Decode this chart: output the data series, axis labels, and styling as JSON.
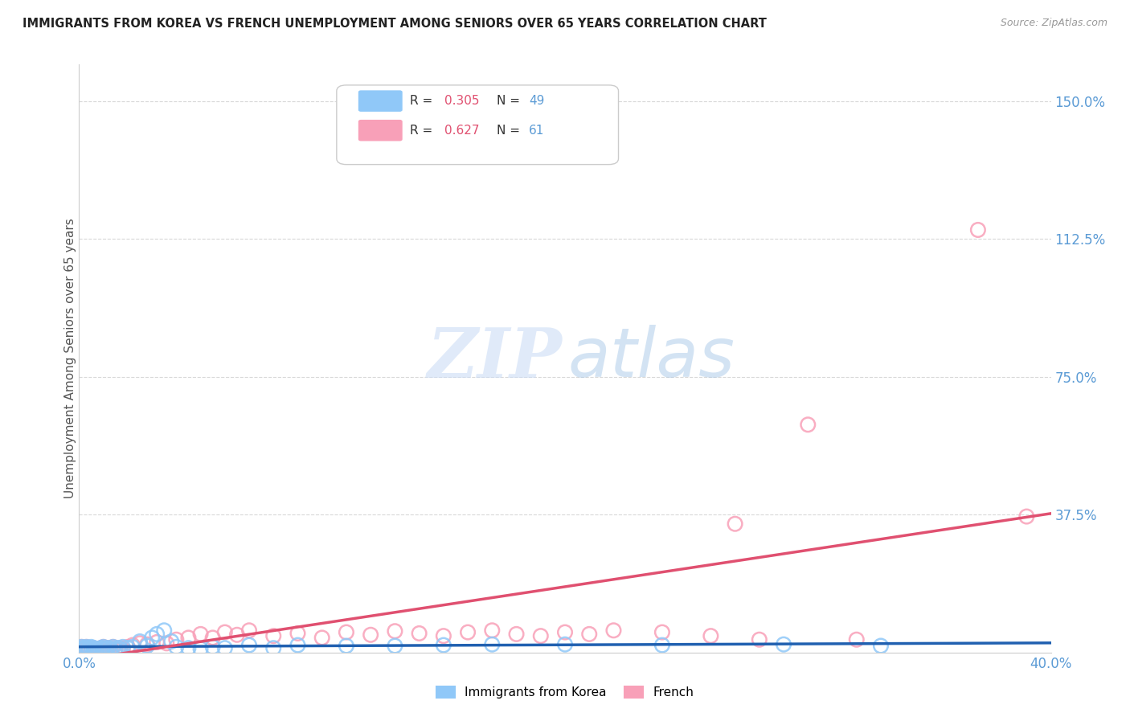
{
  "title": "IMMIGRANTS FROM KOREA VS FRENCH UNEMPLOYMENT AMONG SENIORS OVER 65 YEARS CORRELATION CHART",
  "source": "Source: ZipAtlas.com",
  "ylabel": "Unemployment Among Seniors over 65 years",
  "xlim": [
    0.0,
    0.4
  ],
  "ylim": [
    0.0,
    1.6
  ],
  "xtick_labels": [
    "0.0%",
    "40.0%"
  ],
  "xtick_values": [
    0.0,
    0.4
  ],
  "ytick_labels": [
    "37.5%",
    "75.0%",
    "112.5%",
    "150.0%"
  ],
  "ytick_values": [
    0.375,
    0.75,
    1.125,
    1.5
  ],
  "background_color": "#ffffff",
  "korea_color": "#90c8f8",
  "french_color": "#f8a0b8",
  "korea_line_color": "#2060b0",
  "french_line_color": "#e05070",
  "grid_color": "#d8d8d8",
  "tick_color": "#5b9bd5",
  "legend_r_color": "#e05070",
  "legend_n_color": "#5b9bd5",
  "korea_legend_color": "#90c8f8",
  "french_legend_color": "#f8a0b8",
  "korea_scatter_x": [
    0.001,
    0.001,
    0.002,
    0.002,
    0.003,
    0.003,
    0.004,
    0.004,
    0.005,
    0.005,
    0.006,
    0.006,
    0.007,
    0.008,
    0.009,
    0.01,
    0.01,
    0.011,
    0.012,
    0.013,
    0.014,
    0.015,
    0.016,
    0.017,
    0.018,
    0.02,
    0.022,
    0.025,
    0.028,
    0.03,
    0.032,
    0.035,
    0.038,
    0.04,
    0.045,
    0.05,
    0.055,
    0.06,
    0.07,
    0.08,
    0.09,
    0.11,
    0.13,
    0.15,
    0.17,
    0.2,
    0.24,
    0.29,
    0.33
  ],
  "korea_scatter_y": [
    0.01,
    0.015,
    0.01,
    0.012,
    0.01,
    0.015,
    0.01,
    0.012,
    0.01,
    0.015,
    0.01,
    0.012,
    0.01,
    0.01,
    0.012,
    0.01,
    0.015,
    0.01,
    0.012,
    0.01,
    0.015,
    0.01,
    0.012,
    0.01,
    0.015,
    0.012,
    0.015,
    0.03,
    0.018,
    0.04,
    0.05,
    0.06,
    0.03,
    0.015,
    0.012,
    0.01,
    0.015,
    0.012,
    0.02,
    0.012,
    0.02,
    0.018,
    0.018,
    0.02,
    0.022,
    0.022,
    0.02,
    0.022,
    0.018
  ],
  "french_scatter_x": [
    0.001,
    0.001,
    0.002,
    0.002,
    0.003,
    0.003,
    0.004,
    0.004,
    0.005,
    0.005,
    0.006,
    0.006,
    0.007,
    0.008,
    0.009,
    0.01,
    0.01,
    0.011,
    0.012,
    0.013,
    0.014,
    0.015,
    0.016,
    0.017,
    0.018,
    0.02,
    0.022,
    0.025,
    0.028,
    0.032,
    0.036,
    0.04,
    0.045,
    0.05,
    0.055,
    0.06,
    0.065,
    0.07,
    0.08,
    0.09,
    0.1,
    0.11,
    0.12,
    0.13,
    0.14,
    0.15,
    0.16,
    0.17,
    0.18,
    0.19,
    0.2,
    0.21,
    0.22,
    0.24,
    0.26,
    0.27,
    0.28,
    0.3,
    0.32,
    0.37,
    0.39
  ],
  "french_scatter_y": [
    0.01,
    0.015,
    0.01,
    0.012,
    0.01,
    0.015,
    0.01,
    0.012,
    0.01,
    0.008,
    0.01,
    0.012,
    0.01,
    0.008,
    0.012,
    0.01,
    0.015,
    0.01,
    0.012,
    0.01,
    0.015,
    0.01,
    0.008,
    0.012,
    0.01,
    0.015,
    0.02,
    0.025,
    0.022,
    0.028,
    0.025,
    0.035,
    0.04,
    0.05,
    0.04,
    0.055,
    0.048,
    0.06,
    0.045,
    0.052,
    0.04,
    0.055,
    0.048,
    0.058,
    0.052,
    0.045,
    0.055,
    0.06,
    0.05,
    0.045,
    0.055,
    0.05,
    0.06,
    0.055,
    0.045,
    0.35,
    0.035,
    0.62,
    0.035,
    1.15,
    0.37
  ]
}
